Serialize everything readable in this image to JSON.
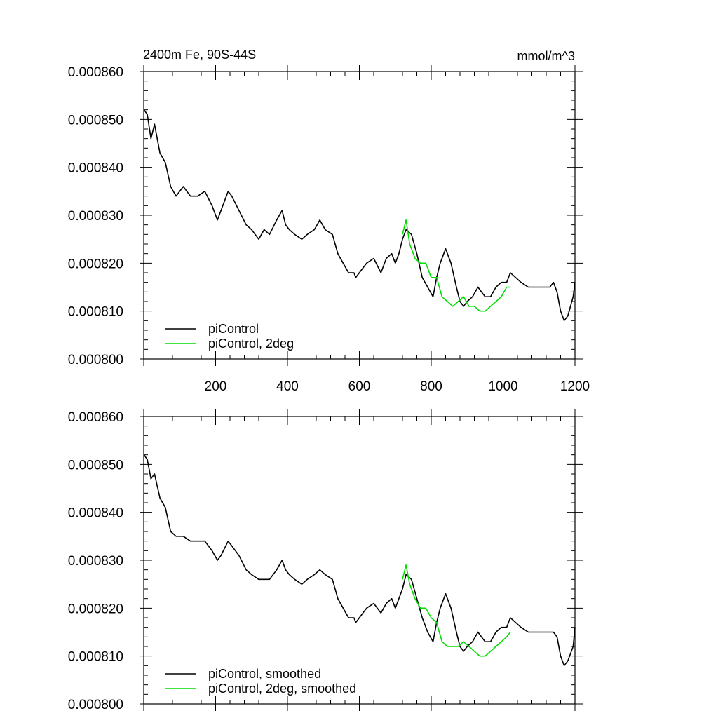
{
  "chart_data": [
    {
      "type": "line",
      "title_left": "2400m Fe, 90S-44S",
      "title_right": "mmol/m^3",
      "xlim": [
        0,
        1200
      ],
      "ylim": [
        0.0008,
        0.00086
      ],
      "x_ticks": [
        200,
        400,
        600,
        800,
        1000,
        1200
      ],
      "x_tick_labels": [
        "200",
        "400",
        "600",
        "800",
        "1000",
        "1200"
      ],
      "y_ticks": [
        0.0008,
        0.00081,
        0.00082,
        0.00083,
        0.00084,
        0.00085,
        0.00086
      ],
      "y_tick_labels": [
        "0.000800",
        "0.000810",
        "0.000820",
        "0.000830",
        "0.000840",
        "0.000850",
        "0.000860"
      ],
      "legend_location": "bottom-left",
      "series": [
        {
          "name": "piControl",
          "color": "#000000",
          "x": [
            1,
            10,
            20,
            30,
            45,
            60,
            75,
            90,
            110,
            130,
            150,
            170,
            190,
            205,
            215,
            235,
            245,
            265,
            285,
            300,
            320,
            335,
            350,
            370,
            385,
            395,
            405,
            420,
            440,
            455,
            475,
            490,
            505,
            525,
            540,
            555,
            570,
            585,
            590,
            600,
            620,
            640,
            660,
            675,
            690,
            700,
            710,
            720,
            730,
            745,
            760,
            775,
            790,
            805,
            815,
            825,
            840,
            855,
            870,
            880,
            890,
            900,
            915,
            930,
            950,
            965,
            980,
            995,
            1010,
            1020,
            1035,
            1050,
            1070,
            1085,
            1100,
            1115,
            1130,
            1140,
            1150,
            1160,
            1170,
            1180,
            1195,
            1200
          ],
          "y": [
            0.000852,
            0.000851,
            0.000846,
            0.000849,
            0.000843,
            0.000841,
            0.000836,
            0.000834,
            0.000836,
            0.000834,
            0.000834,
            0.000835,
            0.000832,
            0.000829,
            0.000831,
            0.000835,
            0.000834,
            0.000831,
            0.000828,
            0.000827,
            0.000825,
            0.000827,
            0.000826,
            0.000829,
            0.000831,
            0.000828,
            0.000827,
            0.000826,
            0.000825,
            0.000826,
            0.000827,
            0.000829,
            0.000827,
            0.000826,
            0.000822,
            0.00082,
            0.000818,
            0.000818,
            0.000817,
            0.000818,
            0.00082,
            0.000821,
            0.000818,
            0.000821,
            0.000822,
            0.00082,
            0.000822,
            0.000825,
            0.000827,
            0.000826,
            0.000822,
            0.000817,
            0.000815,
            0.000813,
            0.000817,
            0.00082,
            0.000823,
            0.00082,
            0.000815,
            0.000812,
            0.000811,
            0.000812,
            0.000813,
            0.000815,
            0.000813,
            0.000813,
            0.000815,
            0.000816,
            0.000816,
            0.000818,
            0.000817,
            0.000816,
            0.000815,
            0.000815,
            0.000815,
            0.000815,
            0.000815,
            0.000816,
            0.000814,
            0.00081,
            0.000808,
            0.000809,
            0.000813,
            0.000816
          ]
        },
        {
          "name": "piControl, 2deg",
          "color": "#00dd00",
          "x": [
            720,
            730,
            740,
            755,
            770,
            785,
            800,
            815,
            830,
            845,
            860,
            875,
            890,
            905,
            920,
            935,
            950,
            965,
            980,
            995,
            1010,
            1020
          ],
          "y": [
            0.000826,
            0.000829,
            0.000824,
            0.000821,
            0.00082,
            0.00082,
            0.000817,
            0.000817,
            0.000813,
            0.000812,
            0.000811,
            0.000812,
            0.000813,
            0.000811,
            0.000811,
            0.00081,
            0.00081,
            0.000811,
            0.000812,
            0.000813,
            0.000815,
            0.000815
          ]
        }
      ]
    },
    {
      "type": "line",
      "xlim": [
        0,
        1200
      ],
      "ylim": [
        0.0008,
        0.00086
      ],
      "y_ticks": [
        0.0008,
        0.00081,
        0.00082,
        0.00083,
        0.00084,
        0.00085,
        0.00086
      ],
      "y_tick_labels": [
        "0.000800",
        "0.000810",
        "0.000820",
        "0.000830",
        "0.000840",
        "0.000850",
        "0.000860"
      ],
      "legend_location": "bottom-left",
      "series": [
        {
          "name": "piControl, smoothed",
          "color": "#000000",
          "x": [
            1,
            10,
            20,
            30,
            45,
            60,
            75,
            90,
            110,
            130,
            150,
            170,
            190,
            205,
            215,
            235,
            245,
            265,
            285,
            300,
            320,
            335,
            350,
            370,
            385,
            395,
            405,
            420,
            440,
            455,
            475,
            490,
            505,
            525,
            540,
            555,
            570,
            585,
            590,
            600,
            620,
            640,
            660,
            675,
            690,
            700,
            710,
            720,
            730,
            745,
            760,
            775,
            790,
            805,
            815,
            825,
            840,
            855,
            870,
            880,
            890,
            900,
            915,
            930,
            950,
            965,
            980,
            995,
            1010,
            1020,
            1035,
            1050,
            1070,
            1085,
            1100,
            1115,
            1130,
            1140,
            1150,
            1160,
            1170,
            1180,
            1195,
            1200
          ],
          "y": [
            0.000852,
            0.000851,
            0.000847,
            0.000848,
            0.000843,
            0.000841,
            0.000836,
            0.000835,
            0.000835,
            0.000834,
            0.000834,
            0.000834,
            0.000832,
            0.00083,
            0.000831,
            0.000834,
            0.000833,
            0.000831,
            0.000828,
            0.000827,
            0.000826,
            0.000826,
            0.000826,
            0.000828,
            0.00083,
            0.000828,
            0.000827,
            0.000826,
            0.000825,
            0.000826,
            0.000827,
            0.000828,
            0.000827,
            0.000826,
            0.000822,
            0.00082,
            0.000818,
            0.000818,
            0.000817,
            0.000818,
            0.00082,
            0.000821,
            0.000819,
            0.000821,
            0.000822,
            0.00082,
            0.000822,
            0.000824,
            0.000827,
            0.000826,
            0.000822,
            0.000818,
            0.000815,
            0.000813,
            0.000817,
            0.00082,
            0.000823,
            0.00082,
            0.000815,
            0.000812,
            0.000811,
            0.000812,
            0.000813,
            0.000815,
            0.000813,
            0.000813,
            0.000815,
            0.000816,
            0.000816,
            0.000818,
            0.000817,
            0.000816,
            0.000815,
            0.000815,
            0.000815,
            0.000815,
            0.000815,
            0.000815,
            0.000814,
            0.00081,
            0.000808,
            0.000809,
            0.000812,
            0.000816
          ]
        },
        {
          "name": "piControl, 2deg, smoothed",
          "color": "#00dd00",
          "x": [
            720,
            730,
            740,
            755,
            770,
            785,
            800,
            815,
            830,
            845,
            860,
            875,
            890,
            905,
            920,
            935,
            950,
            965,
            980,
            995,
            1010,
            1020
          ],
          "y": [
            0.000826,
            0.000829,
            0.000825,
            0.000822,
            0.00082,
            0.00082,
            0.000818,
            0.000817,
            0.000813,
            0.000812,
            0.000812,
            0.000812,
            0.000813,
            0.000812,
            0.000811,
            0.00081,
            0.00081,
            0.000811,
            0.000812,
            0.000813,
            0.000814,
            0.000815
          ]
        }
      ]
    }
  ]
}
